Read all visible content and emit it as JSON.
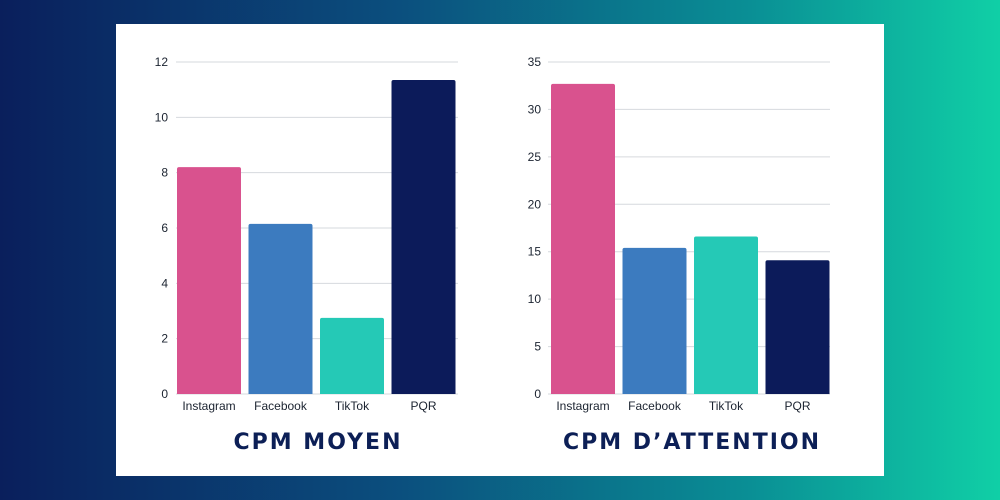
{
  "chart_data": [
    {
      "type": "bar",
      "title": "CPM MOYEN",
      "categories": [
        "Instagram",
        "Facebook",
        "TikTok",
        "PQR"
      ],
      "values": [
        8.2,
        6.15,
        2.75,
        11.35
      ],
      "colors": [
        "#d9528e",
        "#3c7bbf",
        "#25c9b6",
        "#0c1b5a"
      ],
      "yticks": [
        0,
        2,
        4,
        6,
        8,
        10,
        12
      ],
      "ylim": [
        0,
        12
      ],
      "grid": true
    },
    {
      "type": "bar",
      "title": "CPM D’ATTENTION",
      "categories": [
        "Instagram",
        "Facebook",
        "TikTok",
        "PQR"
      ],
      "values": [
        32.7,
        15.4,
        16.6,
        14.1
      ],
      "colors": [
        "#d9528e",
        "#3c7bbf",
        "#25c9b6",
        "#0c1b5a"
      ],
      "yticks": [
        0,
        5,
        10,
        15,
        20,
        25,
        30,
        35
      ],
      "ylim": [
        0,
        35
      ],
      "grid": true
    }
  ]
}
